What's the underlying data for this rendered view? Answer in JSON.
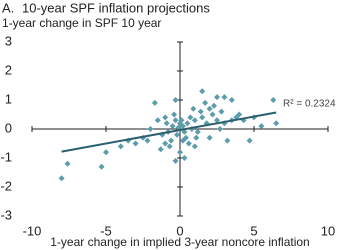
{
  "chart_data": {
    "type": "scatter",
    "panel_label": "A.",
    "title": "10-year SPF inflation projections",
    "ylabel": "1-year change in SPF 10 year",
    "xlabel": "1-year change in implied 3-year noncore inflation",
    "annotation": "R² = 0.2324",
    "color": "#5d9cab",
    "line_color": "#2b5f6e",
    "xlim": [
      -10,
      10
    ],
    "ylim": [
      -3,
      3
    ],
    "xticks": [
      -10,
      -5,
      0,
      5,
      10
    ],
    "yticks": [
      -3,
      -2,
      -1,
      0,
      1,
      2,
      3
    ],
    "x": [
      -8,
      -7.6,
      -5.3,
      -5,
      -4,
      -3,
      -2.5,
      -1.7,
      -0.3,
      1.5,
      2.5,
      3,
      3.5,
      6.3,
      6.5,
      2,
      4,
      3.5,
      3,
      5,
      5.5,
      4.7,
      3.2,
      0.3,
      -0.3,
      0,
      -1,
      1,
      2,
      -2,
      -1.5,
      -1,
      -1.2,
      -0.8,
      -0.5,
      -0.2,
      0.2,
      0.5,
      0.8,
      1,
      1.2,
      1.5,
      -0.6,
      0.4,
      0.1,
      -0.1,
      0.3,
      0.7,
      -0.9,
      1.8,
      2.2,
      2.5,
      1.4,
      0.9,
      -0.4,
      -1.3,
      -0.7,
      0.6,
      1.1,
      2.8,
      3.8,
      4.3,
      2.7,
      0,
      -0.3,
      0.2,
      -2.2,
      -3.5,
      1.7,
      2.3
    ],
    "y": [
      -1.7,
      -1.2,
      -1.3,
      -0.8,
      -0.6,
      -0.5,
      -0.3,
      0.9,
      1.0,
      1.3,
      1.1,
      1.1,
      1.0,
      1.0,
      0.2,
      0.7,
      0.5,
      0.3,
      0.2,
      0.4,
      0.1,
      -0.4,
      -0.4,
      -1.0,
      -1.1,
      -0.8,
      -0.5,
      -0.6,
      -0.3,
      0,
      0.3,
      0.4,
      -0.2,
      -0.1,
      0.1,
      -0.2,
      0.1,
      0.2,
      0,
      0.3,
      -0.1,
      0.4,
      -0.4,
      -0.3,
      0.3,
      0.05,
      -0.1,
      0.4,
      0.2,
      0.2,
      0.5,
      0.3,
      0.6,
      0.7,
      0.5,
      -0.7,
      -0.6,
      -0.5,
      -0.3,
      0.6,
      0.4,
      0.3,
      0,
      0.2,
      0.3,
      -0.4,
      -0.4,
      -0.4,
      0.9,
      0.8
    ],
    "trendline": {
      "x": [
        -8,
        6.5
      ],
      "y": [
        -0.78,
        0.57
      ]
    }
  }
}
